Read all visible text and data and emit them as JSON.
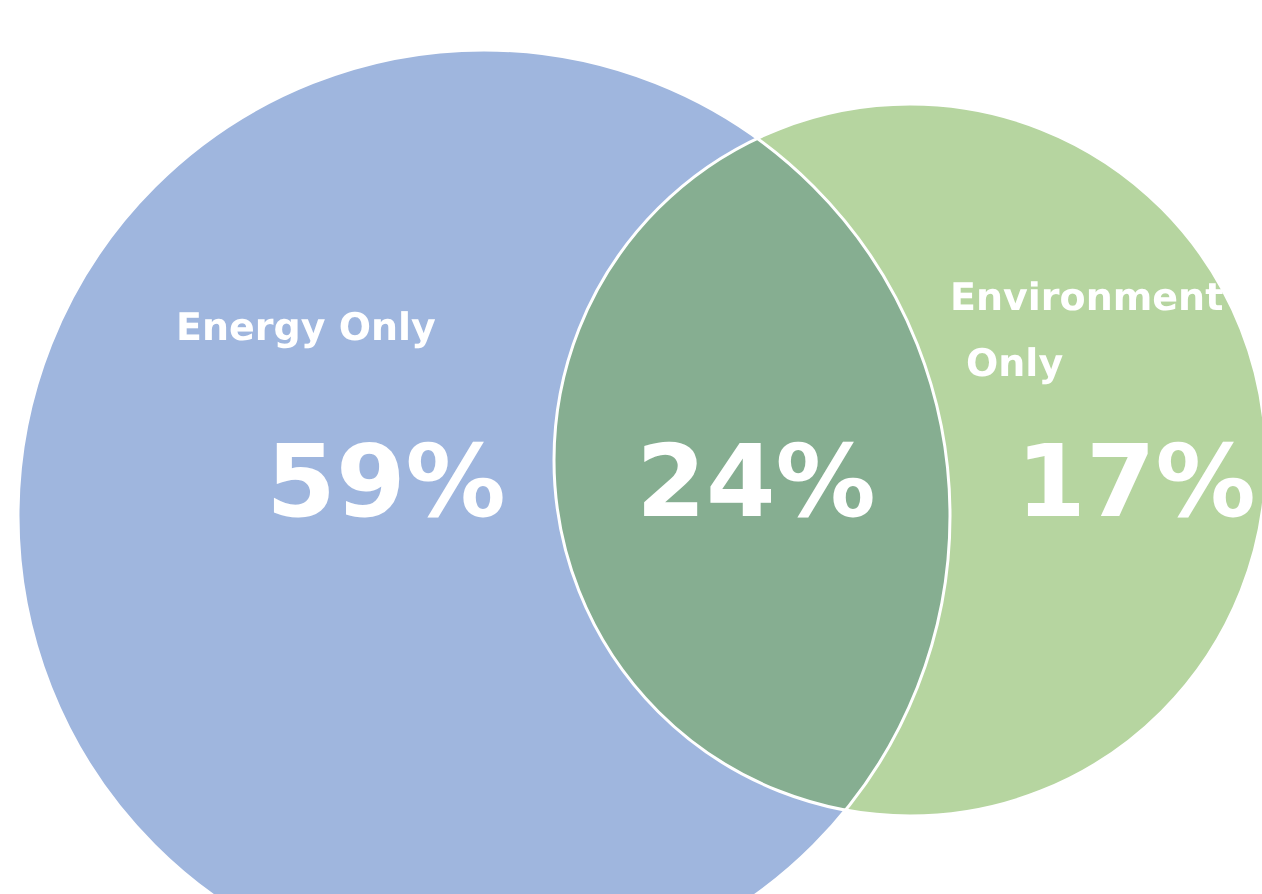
{
  "chart_data": {
    "type": "other",
    "categories": [
      "Energy Only",
      null,
      "Environment Only"
    ],
    "values": [
      59,
      24,
      17
    ],
    "value_labels": [
      "59%",
      "24%",
      "17%"
    ],
    "colors": [
      "#9fb6de",
      "#86ae91",
      "#b6d5a0"
    ]
  }
}
